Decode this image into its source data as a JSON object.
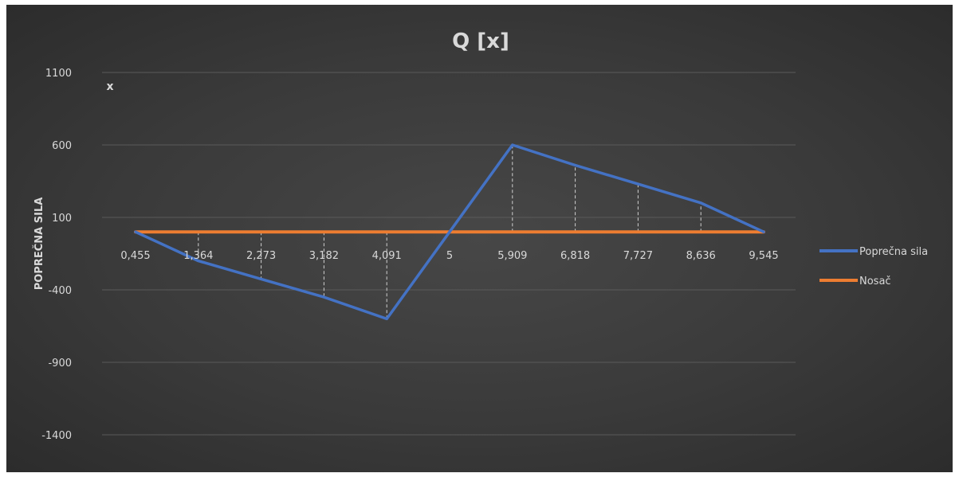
{
  "chart_data": {
    "type": "line",
    "title": "Q  [x]",
    "xlabel": "x",
    "ylabel": "POPREČNA SILA",
    "categories": [
      "0,455",
      "1,364",
      "2,273",
      "3,182",
      "4,091",
      "5",
      "5,909",
      "6,818",
      "7,727",
      "8,636",
      "9,545"
    ],
    "ylim": [
      -1400,
      1100
    ],
    "yticks": [
      1100,
      600,
      100,
      -400,
      -900,
      -1400
    ],
    "grid": true,
    "legend_position": "right",
    "series": [
      {
        "name": "Poprečna sila",
        "color": "#4472C4",
        "values": [
          0,
          -200,
          -325,
          -450,
          -600,
          0,
          600,
          460,
          330,
          200,
          0
        ]
      },
      {
        "name": "Nosač",
        "color": "#ED7D31",
        "values": [
          0,
          0,
          0,
          0,
          0,
          0,
          0,
          0,
          0,
          0,
          0
        ]
      }
    ]
  }
}
